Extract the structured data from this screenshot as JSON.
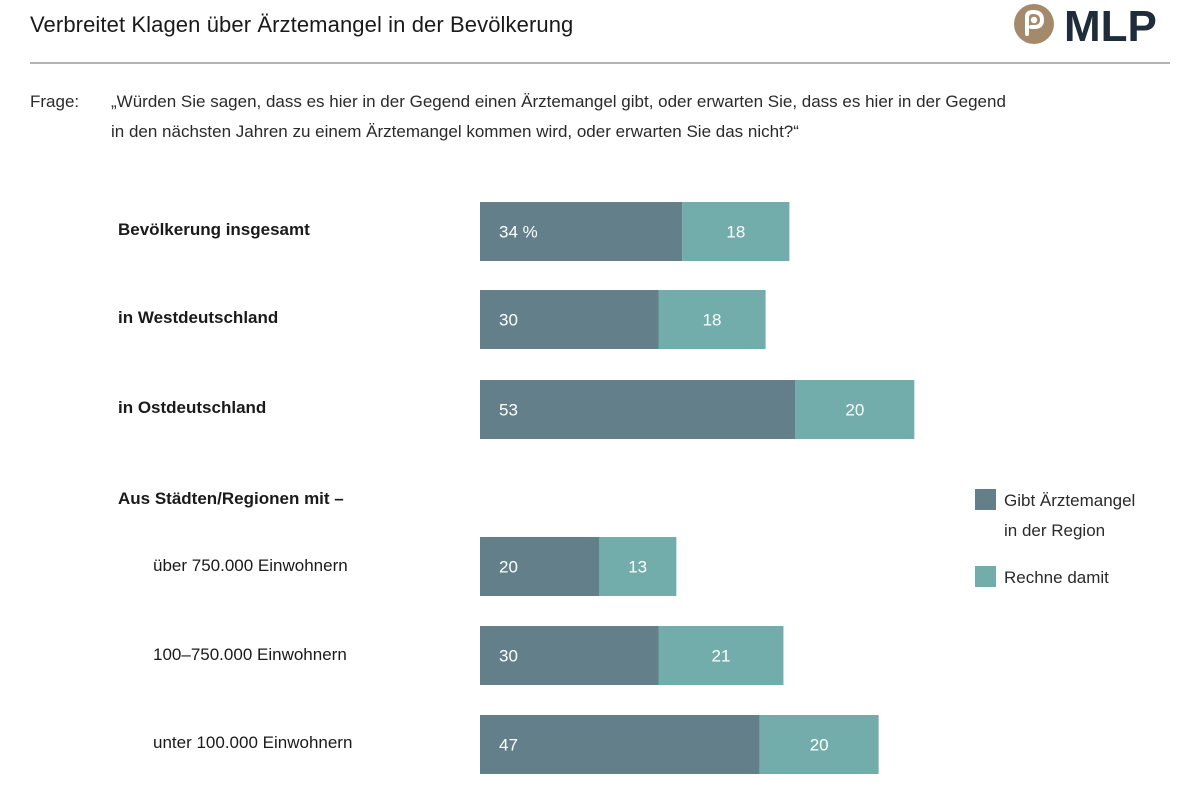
{
  "header": {
    "title": "Verbreitet Klagen über Ärztemangel in der Bevölkerung",
    "logo_text": "MLP"
  },
  "question": {
    "label": "Frage:",
    "line1": "„Würden Sie sagen, dass es hier in der Gegend einen Ärztemangel gibt, oder erwarten Sie, dass es hier in der Gegend",
    "line2": "in den nächsten Jahren zu einem Ärztemangel kommen wird, oder erwarten Sie das nicht?“"
  },
  "colors": {
    "series1": "#627f8a",
    "series2": "#72adab",
    "logo_icon": "#a48a6a",
    "logo_text": "#1f2d3a"
  },
  "chart_data": {
    "type": "bar",
    "orientation": "horizontal",
    "stacked": true,
    "group_heading": "Aus Städten/Regionen mit –",
    "categories": [
      "Bevölkerung insgesamt",
      "in Westdeutschland",
      "in Ostdeutschland",
      "über 750.000 Einwohnern",
      "100–750.000 Einwohnern",
      "unter 100.000 Einwohnern"
    ],
    "series": [
      {
        "name": "Gibt Ärztemangel in der Region",
        "values": [
          34,
          30,
          53,
          20,
          30,
          47
        ],
        "color": "#627f8a"
      },
      {
        "name": "Rechne damit",
        "values": [
          18,
          18,
          20,
          13,
          21,
          20
        ],
        "color": "#72adab"
      }
    ],
    "value_labels": [
      [
        "34 %",
        "30",
        "53",
        "20",
        "30",
        "47"
      ],
      [
        "18",
        "18",
        "20",
        "13",
        "21",
        "20"
      ]
    ],
    "unit": "%",
    "legend": {
      "position": "right",
      "items": [
        {
          "lines": [
            "Gibt Ärztemangel",
            "in der Region"
          ],
          "color": "#627f8a"
        },
        {
          "lines": [
            "Rechne damit"
          ],
          "color": "#72adab"
        }
      ]
    },
    "xlim": [
      0,
      100
    ],
    "grid": false
  }
}
